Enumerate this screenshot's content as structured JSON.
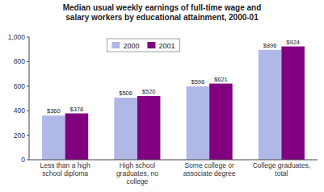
{
  "chart_data": {
    "type": "bar",
    "title": "Median usual weekly earnings of full-time wage and\nsalary workers by educational attainment, 2000-01",
    "categories": [
      "Less than a high\nschool diploma",
      "High school\ngraduates, no\ncollege",
      "Some college or\nassociate degree",
      "College graduates,\ntotal"
    ],
    "series": [
      {
        "name": "2000",
        "color": "#b0b8e8",
        "values": [
          360,
          506,
          598,
          896
        ],
        "value_labels": [
          "$360",
          "$506",
          "$598",
          "$896"
        ]
      },
      {
        "name": "2001",
        "color": "#800080",
        "values": [
          378,
          520,
          621,
          924
        ],
        "value_labels": [
          "$378",
          "$520",
          "$621",
          "$924"
        ]
      }
    ],
    "ylim": [
      0,
      1000
    ],
    "yticks": [
      0,
      200,
      400,
      600,
      800,
      {
        "value": 1000,
        "label": "1,000"
      }
    ],
    "data_labels": true,
    "legend": "top",
    "grid": false
  }
}
